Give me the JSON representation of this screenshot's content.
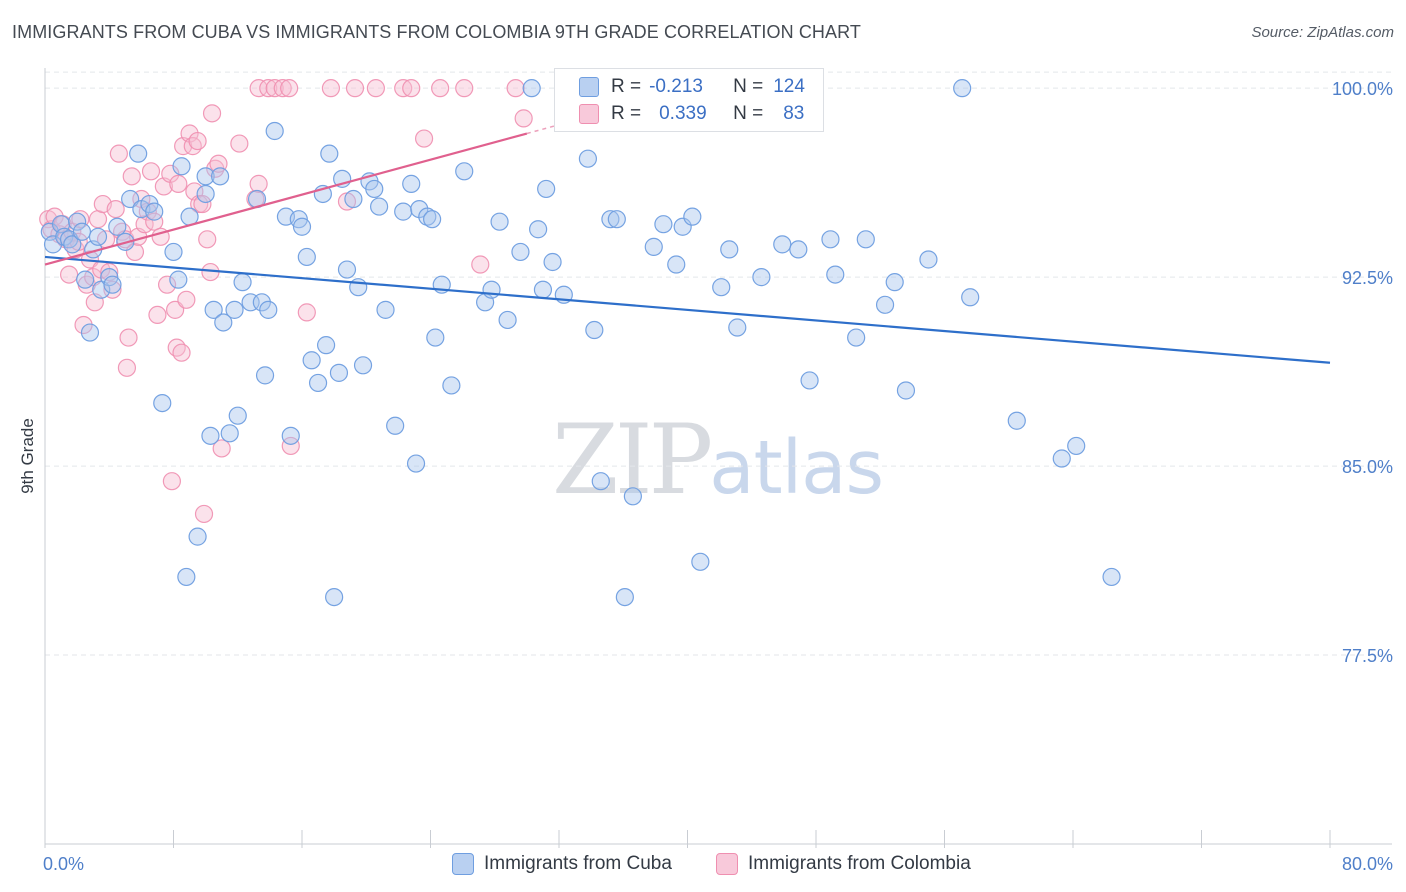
{
  "title": "IMMIGRANTS FROM CUBA VS IMMIGRANTS FROM COLOMBIA 9TH GRADE CORRELATION CHART",
  "source": "Source: ZipAtlas.com",
  "watermark": {
    "zip": "ZIP",
    "atlas": "atlas"
  },
  "legend": {
    "r_label": "R =",
    "n_label": "N =",
    "cuba": {
      "r": "-0.213",
      "n": "124"
    },
    "colombia": {
      "r": "0.339",
      "n": "83"
    }
  },
  "colors": {
    "cuba": "#6f9ee0",
    "cuba_fill": "#a9c6ee",
    "cuba_line": "#2e6fca",
    "colombia": "#ef8fb0",
    "colombia_fill": "#f6bfd2",
    "colombia_line": "#e0608e"
  },
  "chart_data": {
    "type": "scatter",
    "title": "IMMIGRANTS FROM CUBA VS IMMIGRANTS FROM COLOMBIA 9TH GRADE CORRELATION CHART",
    "xlabel": "",
    "ylabel": "9th Grade",
    "xlim": [
      0,
      80
    ],
    "ylim": [
      70.0,
      100.8
    ],
    "x_tick_labels": [
      "0.0%",
      "80.0%"
    ],
    "y_ticks": [
      100.0,
      92.5,
      85.0,
      77.5
    ],
    "y_tick_labels": [
      "100.0%",
      "92.5%",
      "85.0%",
      "77.5%"
    ],
    "grid": true,
    "legend_position": "top-center",
    "series": [
      {
        "name": "Immigrants from Cuba",
        "r": -0.213,
        "n": 124,
        "trend": [
          [
            0,
            93.3
          ],
          [
            80,
            89.1
          ]
        ],
        "points": [
          [
            0.3,
            94.3
          ],
          [
            0.5,
            93.8
          ],
          [
            1.0,
            94.6
          ],
          [
            1.2,
            94.1
          ],
          [
            1.5,
            94.0
          ],
          [
            1.7,
            93.8
          ],
          [
            2.0,
            94.7
          ],
          [
            2.3,
            94.3
          ],
          [
            2.5,
            92.4
          ],
          [
            2.8,
            90.3
          ],
          [
            3.0,
            93.6
          ],
          [
            3.3,
            94.1
          ],
          [
            3.5,
            92.0
          ],
          [
            4.0,
            92.5
          ],
          [
            4.2,
            92.2
          ],
          [
            4.5,
            94.5
          ],
          [
            5.0,
            93.9
          ],
          [
            5.3,
            95.6
          ],
          [
            5.8,
            97.4
          ],
          [
            6.0,
            95.2
          ],
          [
            6.5,
            95.4
          ],
          [
            6.8,
            95.1
          ],
          [
            7.3,
            87.5
          ],
          [
            8.0,
            93.5
          ],
          [
            8.3,
            92.4
          ],
          [
            8.5,
            96.9
          ],
          [
            8.8,
            80.6
          ],
          [
            9.0,
            94.9
          ],
          [
            9.5,
            82.2
          ],
          [
            10.0,
            96.5
          ],
          [
            10.0,
            95.8
          ],
          [
            10.3,
            86.2
          ],
          [
            10.5,
            91.2
          ],
          [
            10.9,
            96.5
          ],
          [
            11.1,
            90.7
          ],
          [
            11.5,
            86.3
          ],
          [
            11.8,
            91.2
          ],
          [
            12.0,
            87.0
          ],
          [
            12.3,
            92.3
          ],
          [
            12.8,
            91.5
          ],
          [
            13.2,
            95.6
          ],
          [
            13.5,
            91.5
          ],
          [
            13.7,
            88.6
          ],
          [
            13.9,
            91.2
          ],
          [
            14.3,
            98.3
          ],
          [
            15.0,
            94.9
          ],
          [
            15.3,
            86.2
          ],
          [
            15.8,
            94.8
          ],
          [
            16.0,
            94.5
          ],
          [
            16.3,
            93.3
          ],
          [
            16.6,
            89.2
          ],
          [
            17.0,
            88.3
          ],
          [
            17.3,
            95.8
          ],
          [
            17.5,
            89.8
          ],
          [
            17.7,
            97.4
          ],
          [
            18.0,
            79.8
          ],
          [
            18.3,
            88.7
          ],
          [
            18.5,
            96.4
          ],
          [
            18.8,
            92.8
          ],
          [
            19.2,
            95.6
          ],
          [
            19.5,
            92.1
          ],
          [
            19.8,
            89.0
          ],
          [
            20.2,
            96.3
          ],
          [
            20.5,
            96.0
          ],
          [
            20.8,
            95.3
          ],
          [
            21.2,
            91.2
          ],
          [
            21.8,
            86.6
          ],
          [
            22.3,
            95.1
          ],
          [
            22.8,
            96.2
          ],
          [
            23.1,
            85.1
          ],
          [
            23.3,
            95.2
          ],
          [
            23.8,
            94.9
          ],
          [
            24.1,
            94.8
          ],
          [
            24.3,
            90.1
          ],
          [
            24.7,
            92.2
          ],
          [
            25.3,
            88.2
          ],
          [
            26.1,
            96.7
          ],
          [
            27.4,
            91.5
          ],
          [
            27.8,
            92.0
          ],
          [
            28.3,
            94.7
          ],
          [
            28.8,
            90.8
          ],
          [
            29.6,
            93.5
          ],
          [
            30.3,
            100.0
          ],
          [
            30.7,
            94.4
          ],
          [
            31.0,
            92.0
          ],
          [
            31.2,
            96.0
          ],
          [
            31.6,
            93.1
          ],
          [
            32.3,
            91.8
          ],
          [
            33.8,
            97.2
          ],
          [
            34.2,
            90.4
          ],
          [
            34.6,
            84.4
          ],
          [
            35.2,
            94.8
          ],
          [
            35.6,
            94.8
          ],
          [
            36.1,
            79.8
          ],
          [
            36.6,
            83.8
          ],
          [
            37.9,
            93.7
          ],
          [
            38.5,
            94.6
          ],
          [
            39.3,
            93.0
          ],
          [
            39.7,
            94.5
          ],
          [
            40.3,
            94.9
          ],
          [
            40.8,
            81.2
          ],
          [
            42.1,
            92.1
          ],
          [
            42.6,
            93.6
          ],
          [
            43.1,
            90.5
          ],
          [
            44.6,
            92.5
          ],
          [
            45.9,
            93.8
          ],
          [
            46.9,
            93.6
          ],
          [
            47.6,
            88.4
          ],
          [
            48.9,
            94.0
          ],
          [
            49.2,
            92.6
          ],
          [
            50.5,
            90.1
          ],
          [
            51.1,
            94.0
          ],
          [
            52.3,
            91.4
          ],
          [
            52.9,
            92.3
          ],
          [
            53.6,
            88.0
          ],
          [
            55.0,
            93.2
          ],
          [
            57.1,
            100.0
          ],
          [
            57.6,
            91.7
          ],
          [
            60.5,
            86.8
          ],
          [
            63.3,
            85.3
          ],
          [
            64.2,
            85.8
          ],
          [
            66.4,
            80.6
          ]
        ]
      },
      {
        "name": "Immigrants from Colombia",
        "r": 0.339,
        "n": 83,
        "trend": [
          [
            0,
            93.0
          ],
          [
            30,
            98.2
          ]
        ],
        "points": [
          [
            0.2,
            94.8
          ],
          [
            0.4,
            94.4
          ],
          [
            0.6,
            94.9
          ],
          [
            0.9,
            94.2
          ],
          [
            1.1,
            94.6
          ],
          [
            1.3,
            94.0
          ],
          [
            1.5,
            92.6
          ],
          [
            1.7,
            94.3
          ],
          [
            1.9,
            93.6
          ],
          [
            2.1,
            93.9
          ],
          [
            2.2,
            94.8
          ],
          [
            2.4,
            90.6
          ],
          [
            2.6,
            92.2
          ],
          [
            2.8,
            93.2
          ],
          [
            3.0,
            92.5
          ],
          [
            3.1,
            91.5
          ],
          [
            3.3,
            94.8
          ],
          [
            3.5,
            92.8
          ],
          [
            3.6,
            95.4
          ],
          [
            3.8,
            94.0
          ],
          [
            4.0,
            92.7
          ],
          [
            4.2,
            92.0
          ],
          [
            4.4,
            95.2
          ],
          [
            4.6,
            97.4
          ],
          [
            4.8,
            94.3
          ],
          [
            5.0,
            94.0
          ],
          [
            5.1,
            88.9
          ],
          [
            5.2,
            90.1
          ],
          [
            5.4,
            96.5
          ],
          [
            5.6,
            93.5
          ],
          [
            5.8,
            94.1
          ],
          [
            6.0,
            95.6
          ],
          [
            6.2,
            94.6
          ],
          [
            6.4,
            95.1
          ],
          [
            6.6,
            96.7
          ],
          [
            6.8,
            94.7
          ],
          [
            7.0,
            91.0
          ],
          [
            7.2,
            94.1
          ],
          [
            7.4,
            96.1
          ],
          [
            7.6,
            92.2
          ],
          [
            7.8,
            96.6
          ],
          [
            7.9,
            84.4
          ],
          [
            8.1,
            91.2
          ],
          [
            8.2,
            89.7
          ],
          [
            8.3,
            96.2
          ],
          [
            8.5,
            89.5
          ],
          [
            8.6,
            97.7
          ],
          [
            8.8,
            91.6
          ],
          [
            9.0,
            98.2
          ],
          [
            9.2,
            97.7
          ],
          [
            9.3,
            95.9
          ],
          [
            9.5,
            97.9
          ],
          [
            9.6,
            95.4
          ],
          [
            9.8,
            95.4
          ],
          [
            9.9,
            83.1
          ],
          [
            10.1,
            94.0
          ],
          [
            10.3,
            92.7
          ],
          [
            10.4,
            99.0
          ],
          [
            10.6,
            96.8
          ],
          [
            10.8,
            97.0
          ],
          [
            11.0,
            85.7
          ],
          [
            12.1,
            97.8
          ],
          [
            13.1,
            95.6
          ],
          [
            13.3,
            96.2
          ],
          [
            13.3,
            100.0
          ],
          [
            13.9,
            100.0
          ],
          [
            14.3,
            100.0
          ],
          [
            14.8,
            100.0
          ],
          [
            15.2,
            100.0
          ],
          [
            15.3,
            85.8
          ],
          [
            16.3,
            91.1
          ],
          [
            17.8,
            100.0
          ],
          [
            18.8,
            95.5
          ],
          [
            19.3,
            100.0
          ],
          [
            20.6,
            100.0
          ],
          [
            22.3,
            100.0
          ],
          [
            22.8,
            100.0
          ],
          [
            23.6,
            98.0
          ],
          [
            24.6,
            100.0
          ],
          [
            26.1,
            100.0
          ],
          [
            27.1,
            93.0
          ],
          [
            29.3,
            100.0
          ],
          [
            29.8,
            98.8
          ]
        ]
      }
    ]
  },
  "axis": {
    "x_min_label": "0.0%",
    "x_max_label": "80.0%",
    "y_label": "9th Grade"
  },
  "bottom_legend": {
    "cuba": "Immigrants from Cuba",
    "colombia": "Immigrants from Colombia"
  }
}
